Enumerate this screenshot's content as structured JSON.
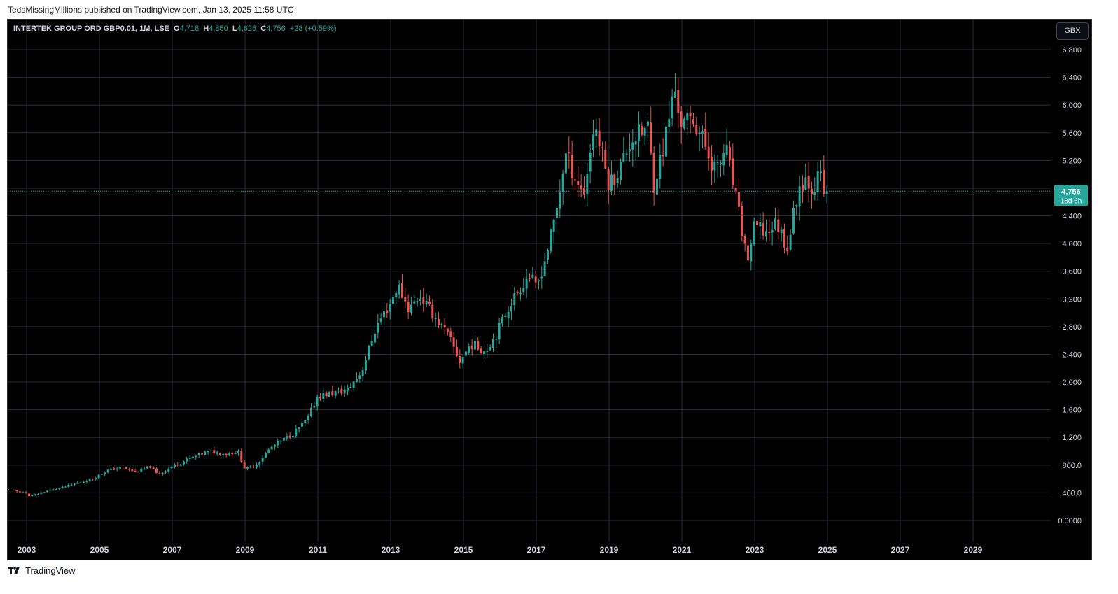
{
  "publisher_line": "TedsMissingMillions published on TradingView.com, Jan 13, 2025 11:58 UTC",
  "legend": {
    "symbol": "INTERTEK GROUP ORD GBP0.01, 1M, LSE",
    "open_label": "O",
    "open": "4,718",
    "high_label": "H",
    "high": "4,850",
    "low_label": "L",
    "low": "4,626",
    "close_label": "C",
    "close": "4,756",
    "change": "+28 (+0.59%)"
  },
  "currency_button": "GBX",
  "price_tag": {
    "price": "4,756",
    "countdown": "18d 6h"
  },
  "footer_brand": "TradingView",
  "colors": {
    "up": "#26a69a",
    "down": "#ef5350",
    "background": "#000000",
    "grid": "#2a2e39"
  },
  "icons": [
    "tradingview-logo-icon"
  ],
  "chart_data": {
    "type": "candlestick",
    "interval": "1M",
    "x_ticks": [
      "2003",
      "2005",
      "2007",
      "2009",
      "2011",
      "2013",
      "2015",
      "2017",
      "2019",
      "2021",
      "2023",
      "2025",
      "2027",
      "2029"
    ],
    "y_ticks": [
      "6,800",
      "6,400",
      "6,000",
      "5,600",
      "5,200",
      "4,800",
      "4,400",
      "4,000",
      "3,600",
      "3,200",
      "2,800",
      "2,400",
      "2,000",
      "1,600",
      "1,200",
      "800.0",
      "400.0",
      "0.0000"
    ],
    "ylim": [
      0,
      6800
    ],
    "xlim": [
      2002.0,
      2030.8
    ],
    "last_price": 4756,
    "grid": true,
    "anchors": [
      [
        2002.4,
        450
      ],
      [
        2002.9,
        410
      ],
      [
        2003.1,
        350
      ],
      [
        2003.5,
        420
      ],
      [
        2004.0,
        480
      ],
      [
        2004.8,
        600
      ],
      [
        2005.2,
        720
      ],
      [
        2005.6,
        770
      ],
      [
        2006.0,
        700
      ],
      [
        2006.4,
        780
      ],
      [
        2006.6,
        660
      ],
      [
        2007.0,
        780
      ],
      [
        2007.5,
        900
      ],
      [
        2008.0,
        1000
      ],
      [
        2008.5,
        960
      ],
      [
        2008.8,
        1000
      ],
      [
        2009.0,
        740
      ],
      [
        2009.3,
        800
      ],
      [
        2009.7,
        1050
      ],
      [
        2010.3,
        1250
      ],
      [
        2010.7,
        1450
      ],
      [
        2011.0,
        1800
      ],
      [
        2011.5,
        1850
      ],
      [
        2011.8,
        1880
      ],
      [
        2012.2,
        2150
      ],
      [
        2012.6,
        2800
      ],
      [
        2013.0,
        3150
      ],
      [
        2013.2,
        3400
      ],
      [
        2013.5,
        3050
      ],
      [
        2013.8,
        3250
      ],
      [
        2014.2,
        2950
      ],
      [
        2014.6,
        2650
      ],
      [
        2014.9,
        2300
      ],
      [
        2015.2,
        2550
      ],
      [
        2015.6,
        2450
      ],
      [
        2015.9,
        2700
      ],
      [
        2016.3,
        3150
      ],
      [
        2016.8,
        3550
      ],
      [
        2017.0,
        3350
      ],
      [
        2017.2,
        3700
      ],
      [
        2017.4,
        4100
      ],
      [
        2017.6,
        4600
      ],
      [
        2017.8,
        5300
      ],
      [
        2018.0,
        5050
      ],
      [
        2018.3,
        4700
      ],
      [
        2018.6,
        5750
      ],
      [
        2018.8,
        5300
      ],
      [
        2019.0,
        4850
      ],
      [
        2019.3,
        5100
      ],
      [
        2019.6,
        5500
      ],
      [
        2019.9,
        5600
      ],
      [
        2020.1,
        5700
      ],
      [
        2020.2,
        4800
      ],
      [
        2020.5,
        5400
      ],
      [
        2020.8,
        6250
      ],
      [
        2021.0,
        5700
      ],
      [
        2021.3,
        5800
      ],
      [
        2021.5,
        5600
      ],
      [
        2021.8,
        5200
      ],
      [
        2022.0,
        5050
      ],
      [
        2022.2,
        5400
      ],
      [
        2022.5,
        4600
      ],
      [
        2022.8,
        3750
      ],
      [
        2023.0,
        4250
      ],
      [
        2023.3,
        4150
      ],
      [
        2023.6,
        4300
      ],
      [
        2023.9,
        3950
      ],
      [
        2024.2,
        4800
      ],
      [
        2024.4,
        4950
      ],
      [
        2024.6,
        4800
      ],
      [
        2024.8,
        5000
      ],
      [
        2024.9,
        4700
      ],
      [
        2025.0,
        4756
      ]
    ]
  }
}
